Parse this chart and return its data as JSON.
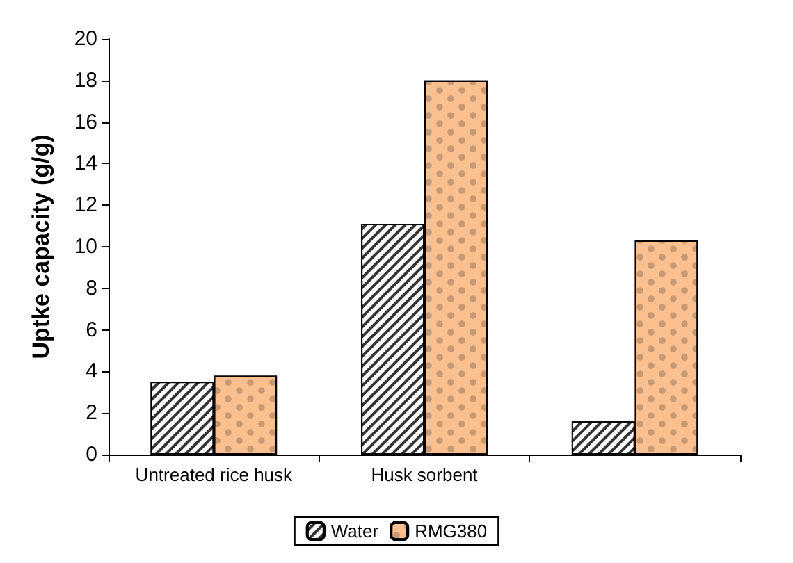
{
  "chart_data": {
    "type": "bar",
    "ylabel": "Uptke capacity (g/g)",
    "categories": [
      "Untreated rice husk",
      "Husk sorbent",
      null
    ],
    "series": [
      {
        "name": "Water",
        "color": "#333333",
        "values": [
          3.5,
          11.1,
          1.6
        ]
      },
      {
        "name": "RMG380",
        "color": "#fac090",
        "values": [
          3.8,
          18.0,
          10.3
        ]
      }
    ],
    "ylim": [
      0,
      20
    ],
    "yticks": [
      0,
      2,
      4,
      6,
      8,
      10,
      12,
      14,
      16,
      18,
      20
    ],
    "grid": false,
    "legend": "bottom"
  }
}
